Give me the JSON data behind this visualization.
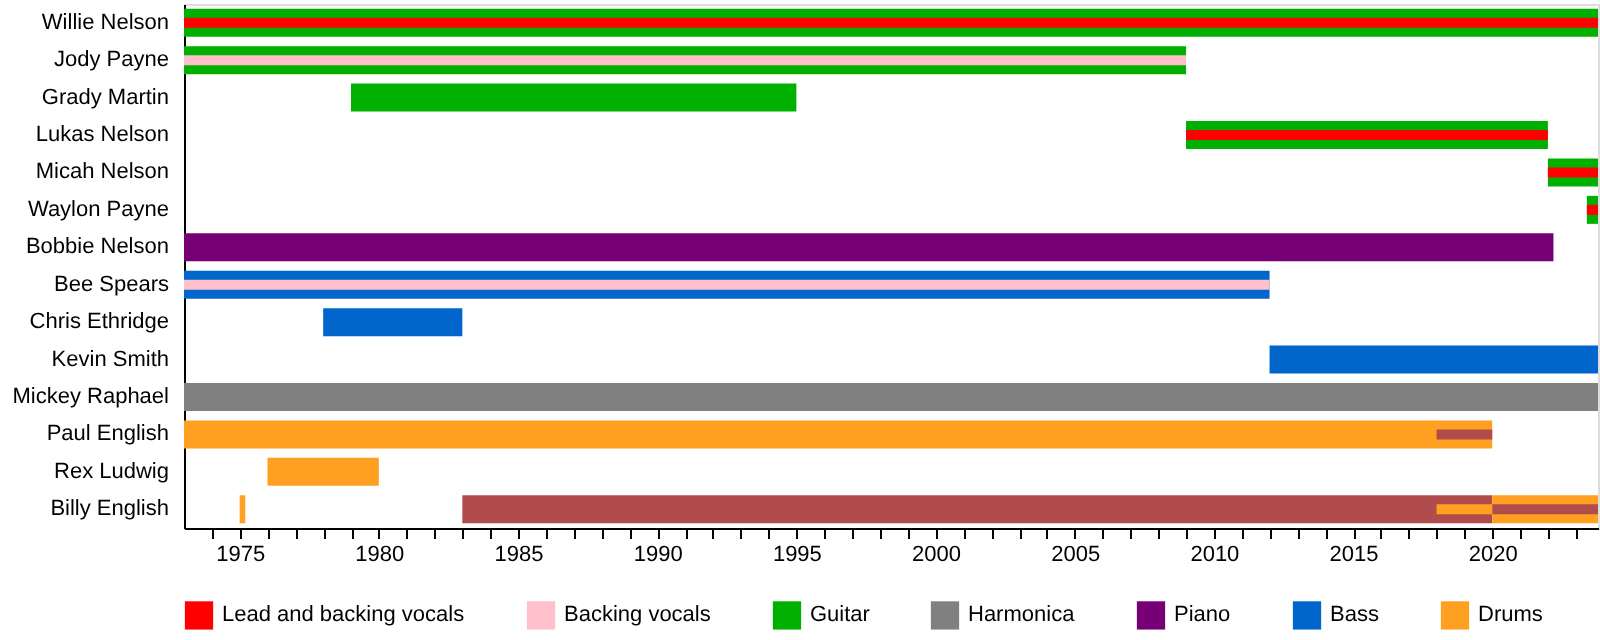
{
  "chart_data": {
    "type": "bar",
    "orientation": "horizontal",
    "categories": [
      "Willie Nelson",
      "Jody Payne",
      "Grady Martin",
      "Lukas Nelson",
      "Micah Nelson",
      "Waylon Payne",
      "Bobbie Nelson",
      "Bee Spears",
      "Chris Ethridge",
      "Kevin Smith",
      "Mickey Raphael",
      "Paul English",
      "Rex Ludwig",
      "Billy English"
    ],
    "series": [
      {
        "name": "Lead and backing vocals",
        "color": "#ff0000",
        "base": [
          1973,
          null,
          null,
          2009,
          2022,
          2023.4,
          null,
          null,
          null,
          null,
          null,
          null,
          null,
          null
        ],
        "values": [
          50.8,
          null,
          null,
          13,
          1.8,
          0.4,
          null,
          null,
          null,
          null,
          null,
          null,
          null,
          null
        ]
      },
      {
        "name": "Backing vocals",
        "color": "#ffc0cb",
        "base": [
          null,
          1973,
          null,
          null,
          null,
          null,
          null,
          1973,
          null,
          null,
          null,
          null,
          null,
          null
        ],
        "values": [
          null,
          36,
          null,
          null,
          null,
          null,
          null,
          39,
          null,
          null,
          null,
          null,
          null,
          null
        ]
      },
      {
        "name": "Guitar",
        "color": "#00b000",
        "base": [
          1973,
          1973,
          1979,
          2009,
          2022,
          2023.4,
          null,
          null,
          null,
          null,
          null,
          null,
          null,
          null
        ],
        "values": [
          50.8,
          36,
          16,
          13,
          1.8,
          0.4,
          null,
          null,
          null,
          null,
          null,
          null,
          null,
          null
        ]
      },
      {
        "name": "Harmonica",
        "color": "#808080",
        "base": [
          null,
          null,
          null,
          null,
          null,
          null,
          null,
          null,
          null,
          null,
          1973,
          null,
          null,
          null
        ],
        "values": [
          null,
          null,
          null,
          null,
          null,
          null,
          null,
          null,
          null,
          null,
          50.8,
          null,
          null,
          null
        ]
      },
      {
        "name": "Piano",
        "color": "#770077",
        "base": [
          null,
          null,
          null,
          null,
          null,
          null,
          1973,
          null,
          null,
          null,
          null,
          null,
          null,
          null
        ],
        "values": [
          null,
          null,
          null,
          null,
          null,
          null,
          49.2,
          null,
          null,
          null,
          null,
          null,
          null,
          null
        ]
      },
      {
        "name": "Bass",
        "color": "#0066cc",
        "base": [
          null,
          null,
          null,
          null,
          null,
          null,
          null,
          1973,
          1978,
          2012,
          null,
          null,
          null,
          null
        ],
        "values": [
          null,
          null,
          null,
          null,
          null,
          null,
          null,
          39,
          5,
          11.8,
          null,
          null,
          null,
          null
        ]
      },
      {
        "name": "Drums",
        "color": "#ffa020",
        "base": [
          null,
          null,
          null,
          null,
          null,
          null,
          null,
          null,
          null,
          null,
          null,
          1973,
          1976,
          1975
        ],
        "values": [
          null,
          null,
          null,
          null,
          null,
          null,
          null,
          null,
          null,
          null,
          null,
          47,
          4,
          0.2
        ]
      },
      {
        "color": "#b04c4c",
        "base": [
          null,
          null,
          null,
          null,
          null,
          null,
          null,
          null,
          null,
          null,
          null,
          null,
          null,
          1983
        ],
        "values": [
          null,
          null,
          null,
          null,
          null,
          null,
          null,
          null,
          null,
          null,
          null,
          null,
          null,
          37
        ]
      },
      {
        "color": "#b04c4c",
        "base": [
          null,
          null,
          null,
          null,
          null,
          null,
          null,
          null,
          null,
          null,
          null,
          2018,
          null,
          2020
        ],
        "values": [
          null,
          null,
          null,
          null,
          null,
          null,
          null,
          null,
          null,
          null,
          null,
          2,
          null,
          3.8
        ]
      },
      {
        "color": "#ffa020",
        "base": [
          null,
          null,
          null,
          null,
          null,
          null,
          null,
          null,
          null,
          null,
          null,
          null,
          null,
          2020
        ],
        "values": [
          null,
          null,
          null,
          null,
          null,
          null,
          null,
          null,
          null,
          null,
          null,
          null,
          null,
          3.8
        ]
      },
      {
        "color": "#ffa020",
        "base": [
          null,
          null,
          null,
          null,
          null,
          null,
          null,
          null,
          null,
          null,
          null,
          null,
          null,
          2018
        ],
        "values": [
          null,
          null,
          null,
          null,
          null,
          null,
          null,
          null,
          null,
          null,
          null,
          null,
          null,
          2
        ]
      }
    ],
    "xlim": [
      1973,
      2023.8
    ],
    "xticks": [
      {
        "value": 1974,
        "label": null
      },
      1975,
      {
        "value": 1976,
        "label": null
      },
      {
        "value": 1977,
        "label": null
      },
      {
        "value": 1978,
        "label": null
      },
      {
        "value": 1979,
        "label": null
      },
      1980,
      {
        "value": 1981,
        "label": null
      },
      {
        "value": 1982,
        "label": null
      },
      {
        "value": 1983,
        "label": null
      },
      {
        "value": 1984,
        "label": null
      },
      1985,
      {
        "value": 1986,
        "label": null
      },
      {
        "value": 1987,
        "label": null
      },
      {
        "value": 1988,
        "label": null
      },
      {
        "value": 1989,
        "label": null
      },
      1990,
      {
        "value": 1991,
        "label": null
      },
      {
        "value": 1992,
        "label": null
      },
      {
        "value": 1993,
        "label": null
      },
      {
        "value": 1994,
        "label": null
      },
      1995,
      {
        "value": 1996,
        "label": null
      },
      {
        "value": 1997,
        "label": null
      },
      {
        "value": 1998,
        "label": null
      },
      {
        "value": 1999,
        "label": null
      },
      2000,
      {
        "value": 2001,
        "label": null
      },
      {
        "value": 2002,
        "label": null
      },
      {
        "value": 2003,
        "label": null
      },
      {
        "value": 2004,
        "label": null
      },
      2005,
      {
        "value": 2006,
        "label": null
      },
      {
        "value": 2007,
        "label": null
      },
      {
        "value": 2008,
        "label": null
      },
      {
        "value": 2009,
        "label": null
      },
      2010,
      {
        "value": 2011,
        "label": null
      },
      {
        "value": 2012,
        "label": null
      },
      {
        "value": 2013,
        "label": null
      },
      {
        "value": 2014,
        "label": null
      },
      2015,
      {
        "value": 2016,
        "label": null
      },
      {
        "value": 2017,
        "label": null
      },
      {
        "value": 2018,
        "label": null
      },
      {
        "value": 2019,
        "label": null
      },
      2020,
      {
        "value": 2021,
        "label": null
      },
      {
        "value": 2022,
        "label": null
      },
      {
        "value": 2023,
        "label": null
      }
    ],
    "grid": false,
    "legend": "bottom"
  }
}
